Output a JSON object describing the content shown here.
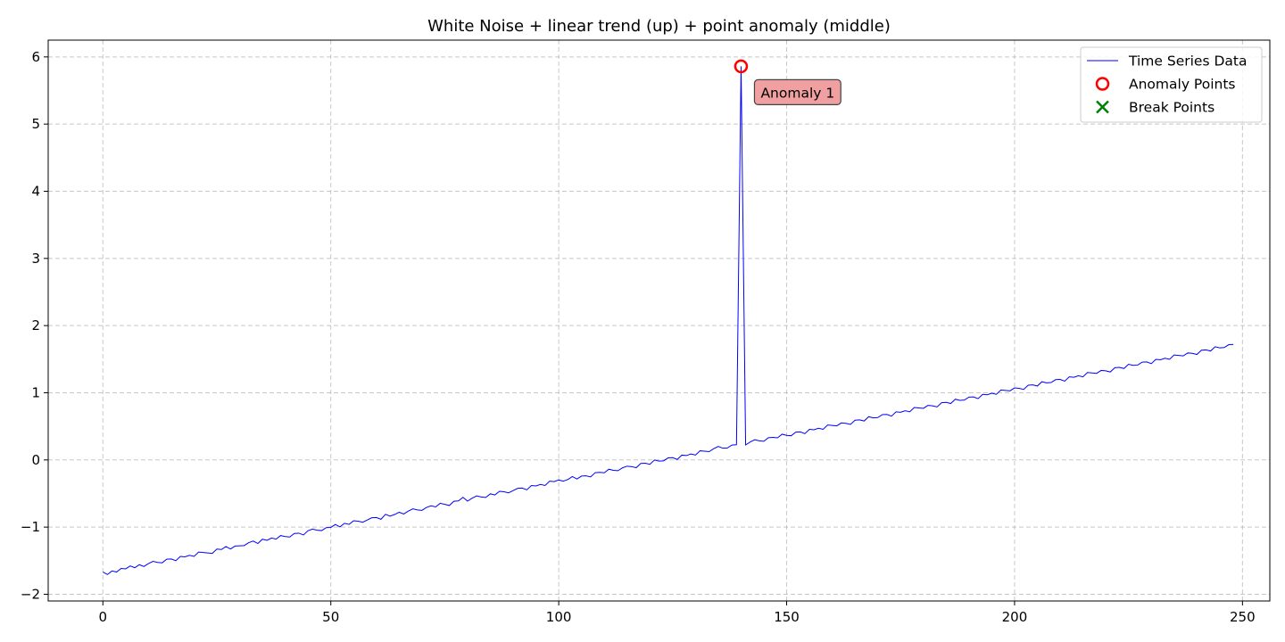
{
  "chart_data": {
    "type": "line",
    "title": "White Noise + linear trend (up) + point anomaly (middle)",
    "xlabel": "",
    "ylabel": "",
    "xlim": [
      -12,
      256
    ],
    "ylim": [
      -2.1,
      6.25
    ],
    "xticks": [
      0,
      50,
      100,
      150,
      200,
      250
    ],
    "yticks": [
      -2,
      -1,
      0,
      1,
      2,
      3,
      4,
      5,
      6
    ],
    "xtick_labels": [
      "0",
      "50",
      "100",
      "150",
      "200",
      "250"
    ],
    "ytick_labels": [
      "−2",
      "−1",
      "0",
      "1",
      "2",
      "3",
      "4",
      "5",
      "6"
    ],
    "grid": true,
    "legend_position": "top-right",
    "series": [
      {
        "name": "Time Series Data",
        "color": "#0000ff",
        "trend": {
          "start": -1.69,
          "end": 1.71
        },
        "noise": [
          0.02,
          -0.03,
          0.01,
          -0.02,
          0.02,
          0.0,
          0.03,
          -0.01,
          0.02,
          -0.02,
          0.01,
          0.03,
          0.0,
          -0.02,
          0.02,
          0.01,
          -0.03,
          0.02,
          0.0,
          0.01,
          -0.02,
          0.03,
          0.01,
          -0.01,
          -0.03,
          0.02,
          0.0,
          0.03,
          -0.02,
          0.01,
          0.0,
          -0.01,
          0.02,
          0.03,
          -0.02,
          0.03,
          0.0,
          0.02,
          -0.01,
          0.03,
          0.0,
          -0.02,
          0.02,
          0.01,
          -0.03,
          0.02,
          0.03,
          0.0,
          -0.02,
          0.01,
          0.0,
          0.03,
          -0.02,
          0.02,
          -0.01,
          0.03,
          0.01,
          -0.02,
          0.0,
          0.02,
          0.01,
          -0.03,
          0.03,
          -0.01,
          0.0,
          0.02,
          -0.02,
          0.01,
          0.03,
          0.0,
          -0.02,
          0.01,
          0.02,
          -0.01,
          0.03,
          0.0,
          -0.03,
          0.02,
          0.01,
          0.05,
          -0.02,
          0.01,
          0.03,
          0.0,
          -0.02,
          0.02,
          -0.01,
          0.03,
          0.01,
          -0.02,
          0.0,
          0.02,
          0.01,
          -0.03,
          0.02,
          0.0,
          0.01,
          -0.02,
          0.03,
          0.01,
          0.02,
          -0.01,
          0.0,
          0.03,
          -0.02,
          0.01,
          0.0,
          -0.03,
          0.02,
          0.01,
          -0.01,
          0.03,
          0.0,
          -0.02,
          0.01,
          0.02,
          0.0,
          -0.03,
          0.02,
          0.01,
          -0.02,
          0.03,
          0.0,
          -0.01,
          0.02,
          0.01,
          -0.03,
          0.02,
          0.0,
          0.01,
          -0.02,
          0.03,
          0.01,
          -0.01,
          0.02,
          0.04,
          0.0,
          -0.01,
          0.02,
          0.01,
          0.0,
          -0.02,
          0.01,
          0.03,
          0.0,
          -0.02,
          0.02,
          0.01,
          -0.01,
          0.03,
          0.0,
          -0.02,
          0.02,
          0.01,
          -0.03,
          0.02,
          0.0,
          0.01,
          -0.02,
          0.03,
          0.01,
          -0.01,
          0.02,
          0.0,
          -0.03,
          0.02,
          0.01,
          -0.02,
          0.03,
          0.0,
          -0.01,
          0.02,
          0.01,
          -0.03,
          0.02,
          0.0,
          0.01,
          -0.02,
          0.03,
          0.01,
          -0.01,
          0.02,
          0.0,
          -0.03,
          0.02,
          0.01,
          -0.02,
          0.03,
          0.0,
          -0.01,
          0.02,
          0.01,
          -0.03,
          0.02,
          0.0,
          0.01,
          -0.02,
          0.03,
          0.01,
          -0.01,
          0.02,
          0.0,
          -0.03,
          0.02,
          0.01,
          -0.02,
          0.03,
          0.0,
          -0.01,
          0.02,
          0.01,
          -0.03,
          0.02,
          0.0,
          0.01,
          -0.02,
          0.03,
          0.01,
          -0.01,
          0.02,
          0.0,
          -0.03,
          0.02,
          0.01,
          -0.02,
          0.03,
          0.0,
          -0.01,
          0.02,
          0.01,
          -0.03,
          0.02,
          0.0,
          0.01,
          -0.02,
          0.03,
          0.01,
          -0.01,
          0.02,
          0.0,
          -0.03,
          0.02,
          0.01,
          -0.02,
          0.03,
          0.0,
          -0.01,
          0.02,
          0.01
        ],
        "overrides": [
          {
            "x": 140,
            "y": 5.86
          }
        ]
      }
    ],
    "anomaly_points": [
      {
        "x": 140,
        "y": 5.86
      }
    ],
    "break_points": [],
    "annotations": [
      {
        "x": 140,
        "y": 5.86,
        "text": "Anomaly 1"
      }
    ],
    "legend": [
      {
        "label": "Time Series Data",
        "marker": "line",
        "color": "#0000ff"
      },
      {
        "label": "Anomaly Points",
        "marker": "circle",
        "color": "#ff0000"
      },
      {
        "label": "Break Points",
        "marker": "x",
        "color": "#008000"
      }
    ],
    "annotation_box_color": "#f0a0a0"
  }
}
